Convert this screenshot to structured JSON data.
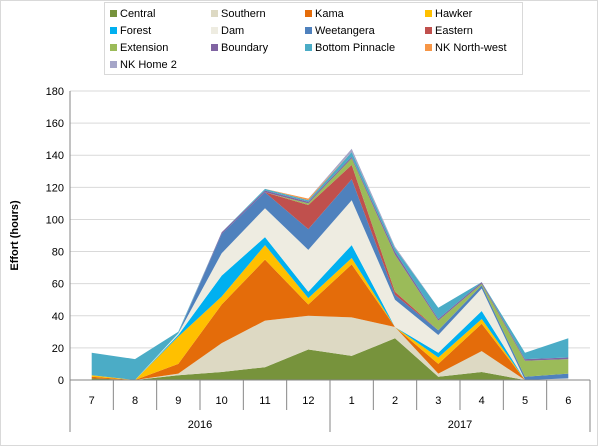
{
  "chart_data": {
    "type": "area",
    "stacked": true,
    "title": "",
    "xlabel": "",
    "ylabel": "Effort  (hours)",
    "ylim": [
      0,
      180
    ],
    "yticks": [
      0,
      20,
      40,
      60,
      80,
      100,
      120,
      140,
      160,
      180
    ],
    "grid": true,
    "legend_position": "top",
    "categories": [
      "7",
      "8",
      "9",
      "10",
      "11",
      "12",
      "1",
      "2",
      "3",
      "4",
      "5",
      "6"
    ],
    "year_groups": [
      {
        "label": "2016",
        "from": 0,
        "to": 5
      },
      {
        "label": "2017",
        "from": 6,
        "to": 11
      }
    ],
    "series": [
      {
        "name": "Central",
        "color": "#77933C",
        "values": [
          1,
          0,
          3,
          5,
          8,
          19,
          15,
          26,
          2,
          5,
          0,
          0
        ]
      },
      {
        "name": "Southern",
        "color": "#DDD9C3",
        "values": [
          0,
          0,
          1,
          18,
          29,
          21,
          24,
          7,
          2,
          13,
          0,
          0
        ]
      },
      {
        "name": "Kama",
        "color": "#E46C0A",
        "values": [
          1,
          0,
          6,
          24,
          38,
          7,
          33,
          0,
          6,
          17,
          0,
          0
        ]
      },
      {
        "name": "Hawker",
        "color": "#FFC000",
        "values": [
          1,
          0,
          17,
          5,
          9,
          4,
          4,
          0,
          4,
          3,
          0,
          0
        ]
      },
      {
        "name": "Forest",
        "color": "#00B0F0",
        "values": [
          0,
          0,
          1,
          13,
          5,
          4,
          8,
          0,
          3,
          5,
          0,
          0
        ]
      },
      {
        "name": "Dam",
        "color": "#EEECE1",
        "values": [
          0,
          0,
          1,
          14,
          18,
          26,
          28,
          17,
          11,
          14,
          0,
          1
        ]
      },
      {
        "name": "Weetangera",
        "color": "#4F81BD",
        "values": [
          0,
          0,
          0,
          12,
          10,
          13,
          13,
          3,
          3,
          2,
          2,
          3
        ]
      },
      {
        "name": "Eastern",
        "color": "#C0504D",
        "values": [
          0,
          0,
          0,
          0,
          0,
          15,
          9,
          2,
          0,
          0,
          0,
          0
        ]
      },
      {
        "name": "Extension",
        "color": "#9BBB59",
        "values": [
          0,
          0,
          0,
          0,
          0,
          1,
          4,
          23,
          6,
          1,
          10,
          9
        ]
      },
      {
        "name": "Boundary",
        "color": "#8064A2",
        "values": [
          0,
          0,
          0,
          1,
          1,
          1,
          1,
          2,
          1,
          1,
          1,
          1
        ]
      },
      {
        "name": "Bottom Pinnacle",
        "color": "#4BACC6",
        "values": [
          14,
          13,
          1,
          0,
          1,
          1,
          3,
          2,
          7,
          0,
          4,
          12
        ]
      },
      {
        "name": "NK North-west",
        "color": "#F79646",
        "values": [
          0,
          0,
          0,
          0,
          0,
          1,
          0,
          0,
          0,
          0,
          0,
          0
        ]
      },
      {
        "name": "NK Home 2",
        "color": "#A5A5C8",
        "values": [
          0,
          0,
          0,
          0,
          0,
          0,
          2,
          1,
          0,
          0,
          0,
          0
        ]
      }
    ]
  }
}
